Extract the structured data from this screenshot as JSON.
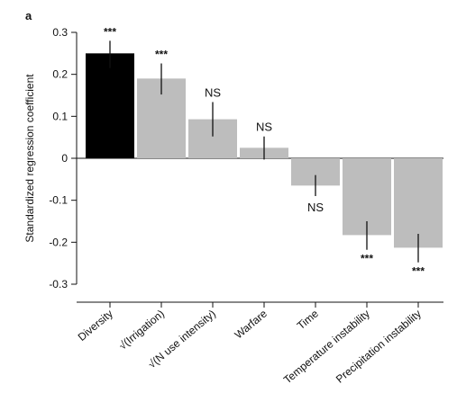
{
  "panel_label": "a",
  "colors": {
    "highlight": "#000000",
    "bar": "#bdbdbd",
    "axis": "#111111"
  },
  "chart_data": {
    "type": "bar",
    "ylabel": "Standardized regression coefficient",
    "xlabel": "",
    "ylim": [
      -0.33,
      0.33
    ],
    "yticks": [
      -0.3,
      -0.2,
      -0.1,
      0,
      0.1,
      0.2,
      0.3
    ],
    "ytick_labels": [
      "-0.3",
      "-0.2",
      "-0.1",
      "0",
      "0.1",
      "0.2",
      "0.3"
    ],
    "grid": false,
    "categories": [
      "Diversity",
      "√(Irrigation)",
      "√(N use intensity)",
      "Warfare",
      "Time",
      "Temperature instability",
      "Precipitation instability"
    ],
    "values": [
      0.25,
      0.19,
      0.093,
      0.025,
      -0.065,
      -0.183,
      -0.213
    ],
    "error_bars": [
      [
        0.215,
        0.28
      ],
      [
        0.152,
        0.226
      ],
      [
        0.052,
        0.134
      ],
      [
        -0.003,
        0.052
      ],
      [
        -0.09,
        -0.04
      ],
      [
        -0.218,
        -0.15
      ],
      [
        -0.248,
        -0.18
      ]
    ],
    "annotations": [
      "***",
      "***",
      "NS",
      "NS",
      "NS",
      "***",
      "***"
    ]
  }
}
